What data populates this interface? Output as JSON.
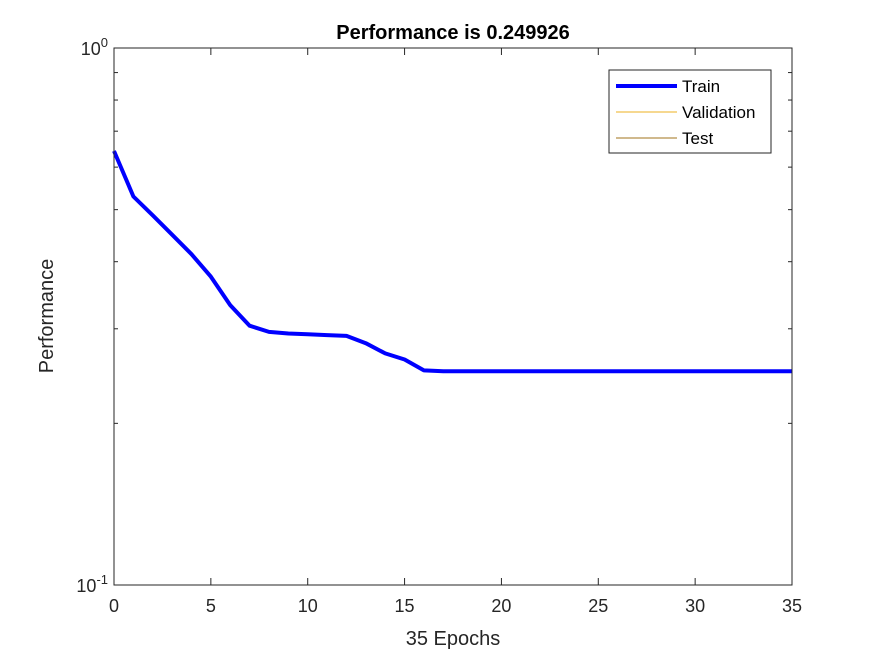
{
  "chart_data": {
    "type": "line",
    "title": "Performance is 0.249926",
    "xlabel": "35 Epochs",
    "ylabel": "Performance",
    "xlim": [
      0,
      35
    ],
    "ylim": [
      0.1,
      1
    ],
    "yscale": "log",
    "xticks": [
      0,
      5,
      10,
      15,
      20,
      25,
      30,
      35
    ],
    "xtick_labels": [
      "0",
      "5",
      "10",
      "15",
      "20",
      "25",
      "30",
      "35"
    ],
    "ytick_labels": [
      {
        "value": 1,
        "base": "10",
        "exp": "0"
      },
      {
        "value": 0.1,
        "base": "10",
        "exp": "-1"
      }
    ],
    "grid": false,
    "legend_position": "top-right",
    "series": [
      {
        "name": "Train",
        "color": "#0000ff",
        "x": [
          0,
          1,
          2,
          3,
          4,
          5,
          6,
          7,
          8,
          9,
          10,
          11,
          12,
          13,
          14,
          15,
          16,
          17,
          18,
          19,
          20,
          21,
          22,
          23,
          24,
          25,
          26,
          27,
          28,
          29,
          30,
          31,
          32,
          33,
          34,
          35
        ],
        "y": [
          0.643,
          0.529,
          0.488,
          0.449,
          0.413,
          0.375,
          0.332,
          0.304,
          0.296,
          0.294,
          0.293,
          0.292,
          0.291,
          0.282,
          0.27,
          0.263,
          0.251,
          0.25,
          0.25,
          0.25,
          0.25,
          0.25,
          0.25,
          0.25,
          0.25,
          0.25,
          0.25,
          0.25,
          0.25,
          0.25,
          0.25,
          0.25,
          0.25,
          0.25,
          0.25,
          0.25
        ]
      },
      {
        "name": "Validation",
        "color": "#edb120",
        "x": [],
        "y": []
      },
      {
        "name": "Test",
        "color": "#a2731b",
        "x": [],
        "y": []
      }
    ]
  }
}
